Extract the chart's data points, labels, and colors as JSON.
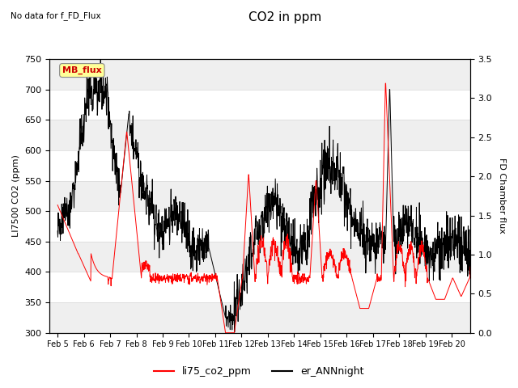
{
  "title": "CO2 in ppm",
  "top_left_text": "No data for f_FD_Flux",
  "ylabel_left": "LI7500 CO2 (ppm)",
  "ylabel_right": "FD Chamber flux",
  "ylim_left": [
    300,
    750
  ],
  "ylim_right": [
    0.0,
    3.5
  ],
  "yticks_left": [
    300,
    350,
    400,
    450,
    500,
    550,
    600,
    650,
    700,
    750
  ],
  "yticks_right": [
    0.0,
    0.5,
    1.0,
    1.5,
    2.0,
    2.5,
    3.0,
    3.5
  ],
  "xticklabels": [
    "Feb 5",
    "Feb 6",
    "Feb 7",
    "Feb 8",
    "Feb 9",
    "Feb 10",
    "Feb 11",
    "Feb 12",
    "Feb 13",
    "Feb 14",
    "Feb 15",
    "Feb 16",
    "Feb 17",
    "Feb 18",
    "Feb 19",
    "Feb 20"
  ],
  "legend_entries": [
    "li75_co2_ppm",
    "er_ANNnight"
  ],
  "legend_colors": [
    "#ff0000",
    "#000000"
  ],
  "line_color_red": "#ff0000",
  "line_color_black": "#000000",
  "mb_flux_box_color": "#ffff99",
  "mb_flux_text_color": "#cc0000",
  "background_color": "#ffffff",
  "grid_color": "#d8d8d8",
  "title_fontsize": 11,
  "label_fontsize": 8,
  "tick_fontsize": 8
}
